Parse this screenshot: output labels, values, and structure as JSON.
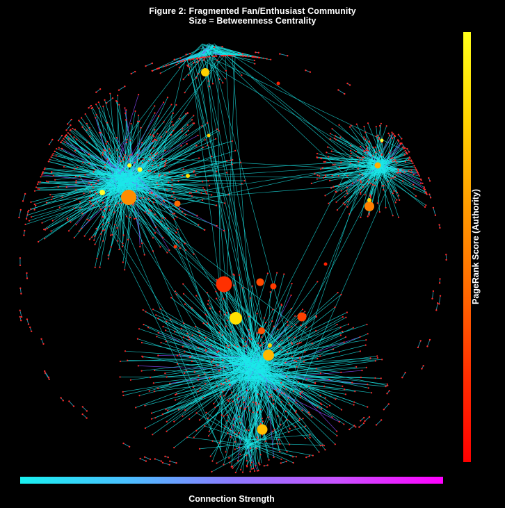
{
  "figure": {
    "title": "Figure 2: Fragmented Fan/Enthusiast Community",
    "subtitle": "Size = Betweenness Centrality"
  },
  "colorbar": {
    "label": "PageRank Score (Authority)",
    "colors": [
      "#ffff1a",
      "#ffd400",
      "#ff9d00",
      "#ff6a00",
      "#ff2e00",
      "#ff0000"
    ]
  },
  "edge_legend": {
    "label": "Connection Strength",
    "colors": [
      "#19f0f0",
      "#4ac0ff",
      "#8c7bff",
      "#c852ff",
      "#ff00ff"
    ]
  },
  "theme": {
    "background": "#000000",
    "edge_color": "#1be8ea",
    "strong_edge_color": "#8a4cff",
    "peripheral_edge_color": "#2aa8c6",
    "leaf_node_color": "#ff2a2a"
  }
}
